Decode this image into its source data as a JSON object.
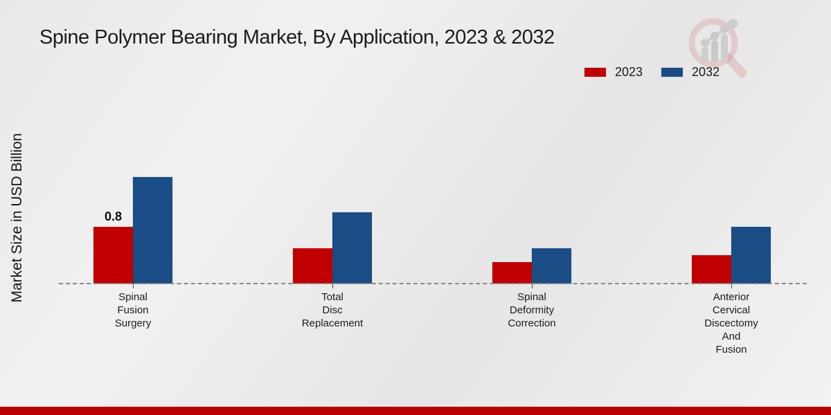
{
  "title": "Spine Polymer Bearing Market, By Application, 2023 & 2032",
  "ylabel": "Market Size in USD Billion",
  "colors": {
    "series_2023": "#c00000",
    "series_2032": "#1a4c85",
    "footer_strip": "#b80000",
    "axis_line": "#878787",
    "background": "#ededed"
  },
  "legend": {
    "position": "top-right",
    "items": [
      {
        "label": "2023",
        "color": "#c00000"
      },
      {
        "label": "2032",
        "color": "#1a4c85"
      }
    ]
  },
  "watermark": {
    "icon": "magnifier-growth-chart-logo"
  },
  "chart_data": {
    "type": "bar",
    "title": "Spine Polymer Bearing Market, By Application, 2023 & 2032",
    "xlabel": "",
    "ylabel": "Market Size in USD Billion",
    "categories": [
      "Spinal\nFusion\nSurgery",
      "Total\nDisc\nReplacement",
      "Spinal\nDeformity\nCorrection",
      "Anterior\nCervical\nDiscectomy\nAnd\nFusion"
    ],
    "series": [
      {
        "name": "2023",
        "color": "#c00000",
        "values": [
          0.8,
          0.5,
          0.3,
          0.4
        ]
      },
      {
        "name": "2032",
        "color": "#1a4c85",
        "values": [
          1.5,
          1.0,
          0.5,
          0.8
        ]
      }
    ],
    "data_labels": [
      {
        "series": "2023",
        "category_index": 0,
        "text": "0.8"
      }
    ],
    "ylim": [
      0,
      2
    ],
    "grid": false,
    "axis_style": "dashed-baseline-only",
    "legend_position": "top-right"
  }
}
